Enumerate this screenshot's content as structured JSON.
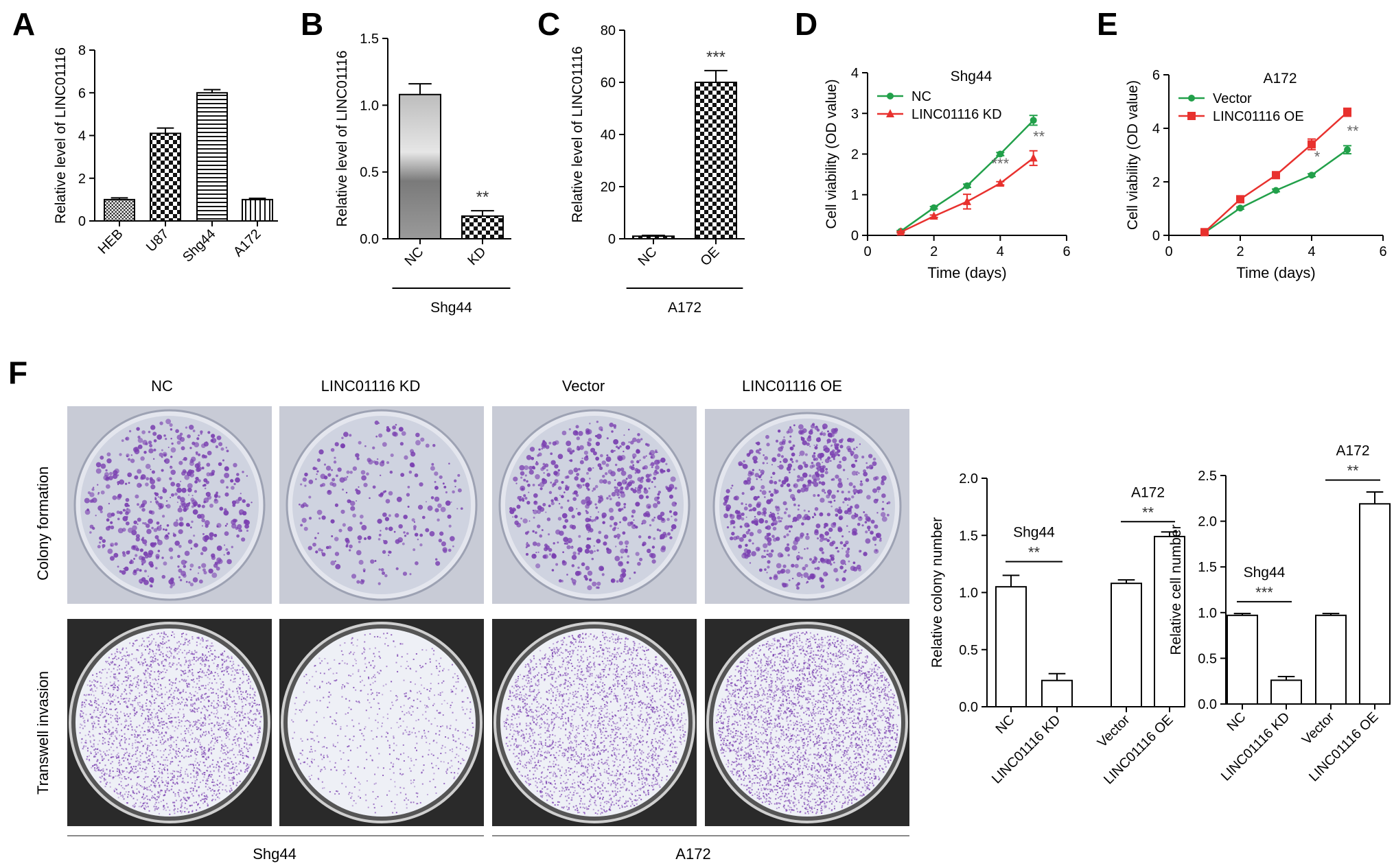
{
  "panel_letters": [
    "A",
    "B",
    "C",
    "D",
    "E",
    "F"
  ],
  "photos": {
    "column_headers": [
      "NC",
      "LINC01116 KD",
      "Vector",
      "LINC01116 OE"
    ],
    "row_labels": [
      "Colony formation",
      "Transwell invasion"
    ],
    "group_labels": [
      "Shg44",
      "A172"
    ],
    "colors": {
      "stain": "#7a3fb0",
      "plate_bg": "#c8cbd6",
      "transwell_bg": "#2a2a2a"
    }
  },
  "chart_data": [
    {
      "panel": "A",
      "type": "bar",
      "categories": [
        "HEB",
        "U87",
        "Shg44",
        "A172"
      ],
      "values": [
        1.0,
        4.1,
        6.0,
        1.0
      ],
      "errors": [
        0.08,
        0.25,
        0.15,
        0.06
      ],
      "patterns": [
        "fine",
        "check",
        "hstripe",
        "vstripe"
      ],
      "ylabel": "Relative level of LINC01116",
      "ylim": [
        0,
        8
      ],
      "yticks": [
        0,
        2,
        4,
        6,
        8
      ]
    },
    {
      "panel": "B",
      "type": "bar",
      "categories": [
        "NC",
        "KD"
      ],
      "values": [
        1.08,
        0.17
      ],
      "errors": [
        0.08,
        0.04
      ],
      "patterns": [
        "gradient",
        "check"
      ],
      "significance": [
        "",
        "**"
      ],
      "ylabel": "Relative level of LINC01116",
      "ylim": [
        0,
        1.5
      ],
      "yticks": [
        0.0,
        0.5,
        1.0,
        1.5
      ],
      "group_label": "Shg44"
    },
    {
      "panel": "C",
      "type": "bar",
      "categories": [
        "NC",
        "OE"
      ],
      "values": [
        1.0,
        60
      ],
      "errors": [
        0.3,
        4.5
      ],
      "patterns": [
        "check",
        "check"
      ],
      "significance": [
        "",
        "***"
      ],
      "ylabel": "Relative level of LINC01116",
      "ylim": [
        0,
        80
      ],
      "yticks": [
        0,
        20,
        40,
        60,
        80
      ],
      "group_label": "A172"
    },
    {
      "panel": "D",
      "type": "line",
      "title": "Shg44",
      "x": [
        1,
        2,
        3,
        4,
        5
      ],
      "series": [
        {
          "name": "NC",
          "color": "#22a04a",
          "marker": "circle",
          "values": [
            0.1,
            0.68,
            1.22,
            2.0,
            2.83
          ],
          "errors": [
            0.02,
            0.03,
            0.04,
            0.04,
            0.12
          ]
        },
        {
          "name": "LINC01116 KD",
          "color": "#e8312e",
          "marker": "triangle",
          "values": [
            0.08,
            0.47,
            0.83,
            1.28,
            1.9
          ],
          "errors": [
            0.02,
            0.03,
            0.18,
            0.04,
            0.18
          ]
        }
      ],
      "annotations": [
        {
          "x": 4,
          "y": 1.64,
          "text": "***"
        },
        {
          "x": 5,
          "y": 2.3,
          "text": "**"
        }
      ],
      "xlabel": "Time (days)",
      "ylabel": "Cell viability (OD value)",
      "xlim": [
        0,
        6
      ],
      "xticks": [
        0,
        2,
        4,
        6
      ],
      "ylim": [
        0,
        4
      ],
      "yticks": [
        0,
        1,
        2,
        3,
        4
      ],
      "legend": "top-left"
    },
    {
      "panel": "E",
      "type": "line",
      "title": "A172",
      "x": [
        1,
        2,
        3,
        4,
        5
      ],
      "series": [
        {
          "name": "Vector",
          "color": "#22a04a",
          "marker": "circle",
          "values": [
            0.1,
            1.02,
            1.68,
            2.25,
            3.2
          ],
          "errors": [
            0.02,
            0.04,
            0.05,
            0.05,
            0.15
          ]
        },
        {
          "name": "LINC01116 OE",
          "color": "#e8312e",
          "marker": "square",
          "values": [
            0.12,
            1.35,
            2.25,
            3.4,
            4.6
          ],
          "errors": [
            0.02,
            0.1,
            0.12,
            0.2,
            0.15
          ]
        }
      ],
      "annotations": [
        {
          "x": 4,
          "y": 2.75,
          "text": "*"
        },
        {
          "x": 5,
          "y": 3.7,
          "text": "**"
        }
      ],
      "xlabel": "Time (days)",
      "ylabel": "Cell viability (OD value)",
      "xlim": [
        0,
        6
      ],
      "xticks": [
        0,
        2,
        4,
        6
      ],
      "ylim": [
        0,
        6
      ],
      "yticks": [
        0,
        2,
        4,
        6
      ],
      "legend": "top-left"
    },
    {
      "panel": "F-colony",
      "type": "bar",
      "categories": [
        "NC",
        "LINC01116 KD",
        "Vector",
        "LINC01116 OE"
      ],
      "values": [
        1.05,
        0.23,
        1.08,
        1.49
      ],
      "errors": [
        0.1,
        0.06,
        0.03,
        0.04
      ],
      "brackets": [
        {
          "from": 0,
          "to": 1,
          "stars": "**",
          "group": "Shg44",
          "y": 1.27
        },
        {
          "from": 2,
          "to": 3,
          "stars": "**",
          "group": "A172",
          "y": 1.62
        }
      ],
      "ylabel": "Relative colony number",
      "ylim": [
        0,
        2.0
      ],
      "yticks": [
        0.0,
        0.5,
        1.0,
        1.5,
        2.0
      ]
    },
    {
      "panel": "F-invasion",
      "type": "bar",
      "categories": [
        "NC",
        "LINC01116 KD",
        "Vector",
        "LINC01116 OE"
      ],
      "values": [
        0.97,
        0.26,
        0.97,
        2.19
      ],
      "errors": [
        0.02,
        0.04,
        0.02,
        0.13
      ],
      "brackets": [
        {
          "from": 0,
          "to": 1,
          "stars": "***",
          "group": "Shg44",
          "y": 1.12
        },
        {
          "from": 2,
          "to": 3,
          "stars": "**",
          "group": "A172",
          "y": 2.45
        }
      ],
      "ylabel": "Relative cell number",
      "ylim": [
        0,
        2.5
      ],
      "yticks": [
        0.0,
        0.5,
        1.0,
        1.5,
        2.0,
        2.5
      ]
    }
  ]
}
